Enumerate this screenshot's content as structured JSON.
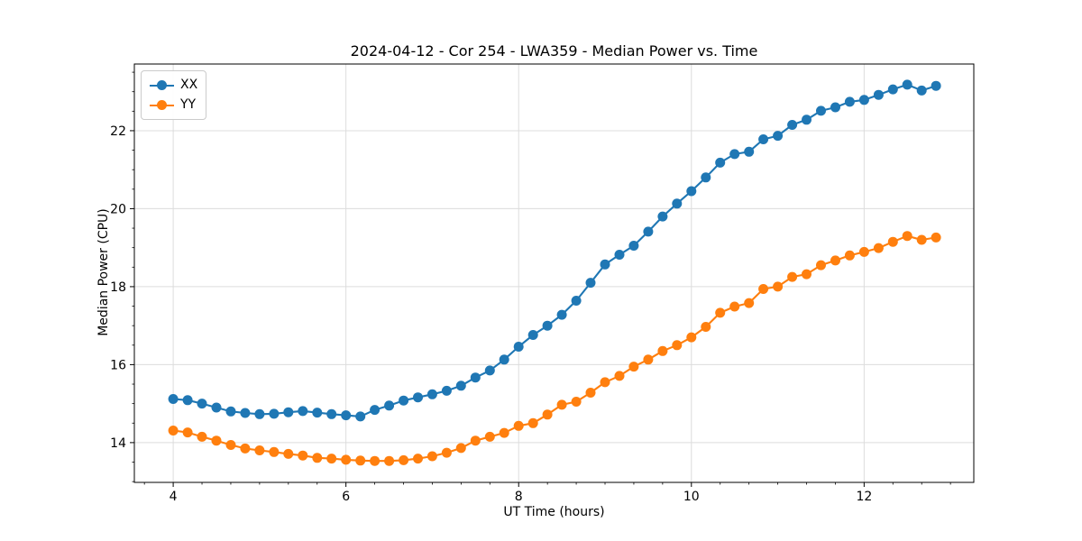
{
  "chart_data": {
    "type": "line",
    "title": "2024-04-12 - Cor 254 - LWA359 - Median Power vs. Time",
    "xlabel": "UT Time (hours)",
    "ylabel": "Median Power (CPU)",
    "xlim": [
      3.55,
      13.27
    ],
    "ylim": [
      12.98,
      23.71
    ],
    "xticks": [
      4,
      6,
      8,
      10,
      12
    ],
    "yticks": [
      14,
      16,
      18,
      20,
      22
    ],
    "x_minor_step": 0.3333,
    "y_minor_step": 0.5,
    "grid": true,
    "grid_color": "#dcdcdc",
    "axis_color": "#000000",
    "legend_position": "upper-left",
    "x": [
      4.0,
      4.167,
      4.333,
      4.5,
      4.667,
      4.833,
      5.0,
      5.167,
      5.333,
      5.5,
      5.667,
      5.833,
      6.0,
      6.167,
      6.333,
      6.5,
      6.667,
      6.833,
      7.0,
      7.167,
      7.333,
      7.5,
      7.667,
      7.833,
      8.0,
      8.167,
      8.333,
      8.5,
      8.667,
      8.833,
      9.0,
      9.167,
      9.333,
      9.5,
      9.667,
      9.833,
      10.0,
      10.167,
      10.333,
      10.5,
      10.667,
      10.833,
      11.0,
      11.167,
      11.333,
      11.5,
      11.667,
      11.833,
      12.0,
      12.167,
      12.333,
      12.5,
      12.667,
      12.833
    ],
    "series": [
      {
        "name": "XX",
        "color": "#1f77b4",
        "marker": "circle",
        "values": [
          15.12,
          15.09,
          15.0,
          14.9,
          14.8,
          14.76,
          14.73,
          14.74,
          14.78,
          14.81,
          14.77,
          14.73,
          14.7,
          14.67,
          14.84,
          14.95,
          15.08,
          15.16,
          15.24,
          15.33,
          15.46,
          15.67,
          15.85,
          16.13,
          16.46,
          16.76,
          17.0,
          17.28,
          17.64,
          18.1,
          18.57,
          18.82,
          19.05,
          19.41,
          19.8,
          20.13,
          20.45,
          20.8,
          21.18,
          21.4,
          21.46,
          21.78,
          21.87,
          22.15,
          22.28,
          22.51,
          22.6,
          22.74,
          22.79,
          22.92,
          23.06,
          23.18,
          23.03,
          23.15
        ]
      },
      {
        "name": "YY",
        "color": "#ff7f0e",
        "marker": "circle",
        "values": [
          14.31,
          14.26,
          14.15,
          14.05,
          13.94,
          13.85,
          13.8,
          13.76,
          13.71,
          13.67,
          13.61,
          13.59,
          13.56,
          13.54,
          13.53,
          13.53,
          13.55,
          13.59,
          13.65,
          13.74,
          13.86,
          14.05,
          14.15,
          14.25,
          14.43,
          14.5,
          14.72,
          14.97,
          15.05,
          15.28,
          15.55,
          15.71,
          15.95,
          16.13,
          16.35,
          16.5,
          16.7,
          16.97,
          17.33,
          17.49,
          17.58,
          17.94,
          18.0,
          18.25,
          18.32,
          18.55,
          18.67,
          18.8,
          18.89,
          18.99,
          19.15,
          19.3,
          19.2,
          19.26
        ]
      }
    ]
  }
}
